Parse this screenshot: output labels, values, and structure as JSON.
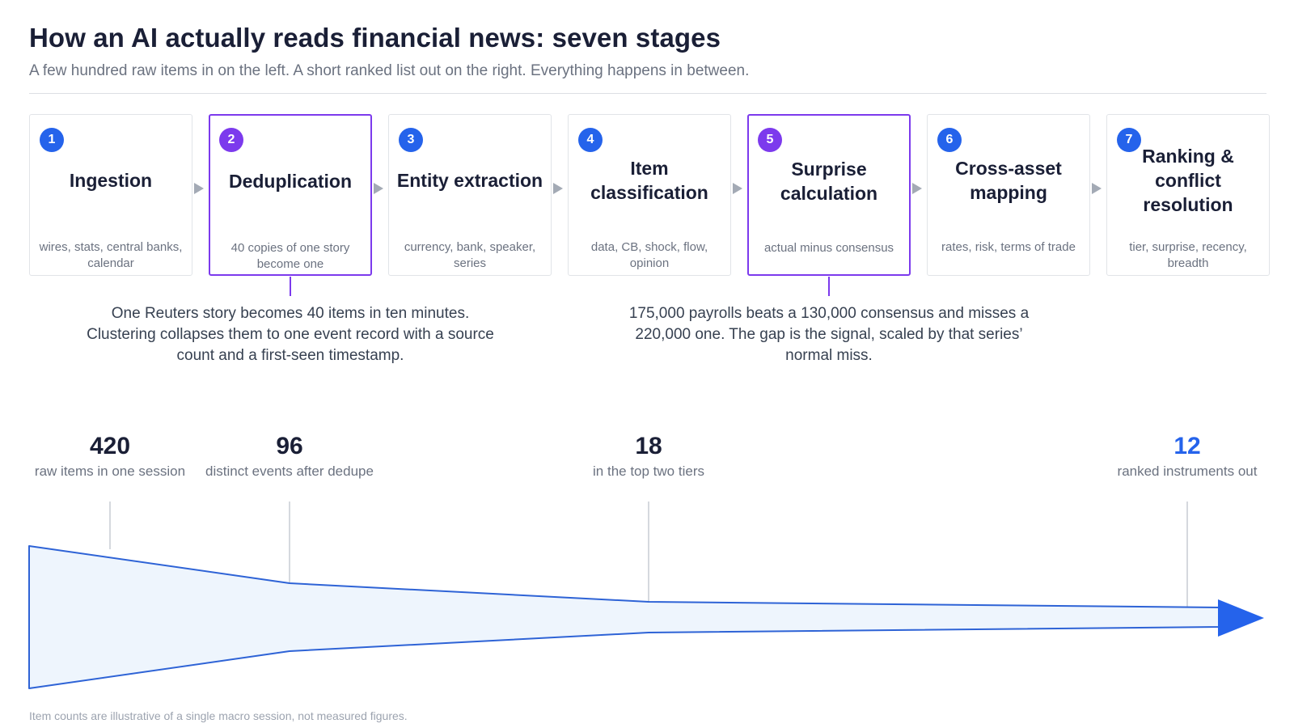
{
  "header": {
    "title": "How an AI actually reads financial news: seven stages",
    "subtitle": "A few hundred raw items in on the left. A short ranked list out on the right. Everything happens in between."
  },
  "stages": [
    {
      "number": "1",
      "name": "Ingestion",
      "sub": "wires, stats, central banks, calendar"
    },
    {
      "number": "2",
      "name": "Deduplication",
      "sub": "40 copies of one story become one"
    },
    {
      "number": "3",
      "name": "Entity extraction",
      "sub": "currency, bank, speaker, series"
    },
    {
      "number": "4",
      "name": "Item classification",
      "sub": "data, CB, shock, flow, opinion"
    },
    {
      "number": "5",
      "name": "Surprise calculation",
      "sub": "actual minus consensus"
    },
    {
      "number": "6",
      "name": "Cross-asset mapping",
      "sub": "rates, risk, terms of trade"
    },
    {
      "number": "7",
      "name": "Ranking & conflict resolution",
      "sub": "tier, surprise, recency, breadth"
    }
  ],
  "notes": {
    "dedup": "One Reuters story becomes 40 items in ten minutes. Clustering collapses them to one event record with a source count and a first-seen timestamp.",
    "surprise": "175,000 payrolls beats a 130,000 consensus and misses a 220,000 one. The gap is the signal, scaled by that series’ normal miss."
  },
  "metrics": [
    {
      "value": "420",
      "label": "raw items in one session"
    },
    {
      "value": "96",
      "label": "distinct events after dedupe"
    },
    {
      "value": "18",
      "label": "in the top two tiers"
    },
    {
      "value": "12",
      "label": "ranked instruments out"
    }
  ],
  "colors": {
    "accent": "#2563eb",
    "highlight": "#7c3aed",
    "funnel_fill": "#eef5fd"
  },
  "footnote": "Item counts are illustrative of a single macro session, not measured figures."
}
